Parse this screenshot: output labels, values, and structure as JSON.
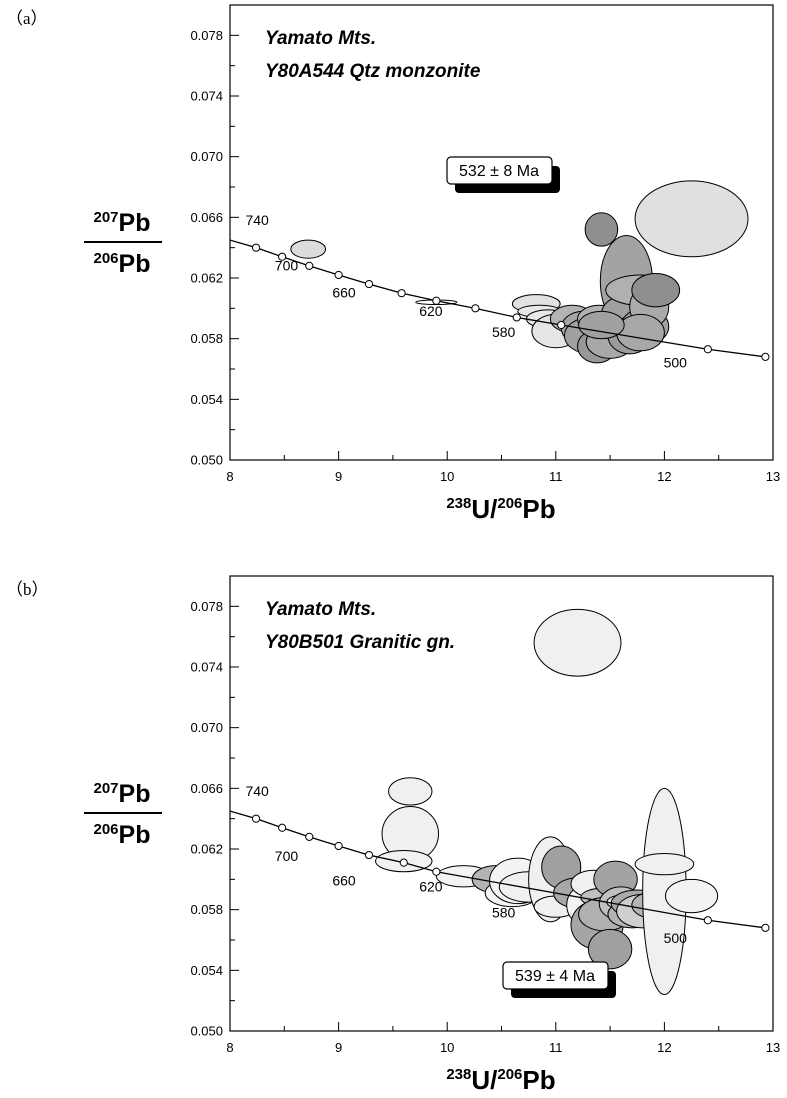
{
  "chart_data": [
    {
      "panel_label": "（a）",
      "type": "scatter",
      "title_lines": [
        "Yamato Mts.",
        "Y80A544  Qtz monzonite"
      ],
      "age_box": "532 ± 8 Ma",
      "xlim": [
        8,
        13
      ],
      "ylim": [
        0.05,
        0.08
      ],
      "x_ticks": [
        "8",
        "9",
        "10",
        "11",
        "12",
        "13"
      ],
      "y_ticks": [
        "0.050",
        "0.054",
        "0.058",
        "0.062",
        "0.066",
        "0.070",
        "0.074",
        "0.078"
      ],
      "y_label": {
        "num_sup": "207",
        "num": "Pb",
        "den_sup": "206",
        "den": "Pb"
      },
      "x_label": {
        "a_sup": "238",
        "a": "U/",
        "b_sup": "206",
        "b": "Pb"
      },
      "concordia": [
        [
          8.0,
          0.0645
        ],
        [
          8.24,
          0.064
        ],
        [
          8.48,
          0.0634
        ],
        [
          8.73,
          0.0628
        ],
        [
          9.0,
          0.0622
        ],
        [
          9.28,
          0.0616
        ],
        [
          9.58,
          0.061
        ],
        [
          9.9,
          0.0605
        ],
        [
          10.26,
          0.06
        ],
        [
          10.64,
          0.0594
        ],
        [
          11.05,
          0.0589
        ],
        [
          12.4,
          0.0573
        ],
        [
          12.93,
          0.0568
        ]
      ],
      "age_labels": [
        {
          "text": "740",
          "x": 8.25,
          "y": 0.0655
        },
        {
          "text": "700",
          "x": 8.52,
          "y": 0.0625
        },
        {
          "text": "660",
          "x": 9.05,
          "y": 0.0607
        },
        {
          "text": "620",
          "x": 9.85,
          "y": 0.0595
        },
        {
          "text": "580",
          "x": 10.52,
          "y": 0.0581
        },
        {
          "text": "500",
          "x": 12.1,
          "y": 0.0561
        }
      ],
      "ellipses": [
        {
          "x": 8.72,
          "y": 0.0639,
          "rx": 0.16,
          "ry": 0.0006,
          "fill": "#dcdcdc"
        },
        {
          "x": 9.9,
          "y": 0.0604,
          "rx": 0.19,
          "ry": 0.00015,
          "fill": "#ffffff"
        },
        {
          "x": 10.82,
          "y": 0.0603,
          "rx": 0.22,
          "ry": 0.0006,
          "fill": "#e2e2e2"
        },
        {
          "x": 10.85,
          "y": 0.0598,
          "rx": 0.2,
          "ry": 0.0004,
          "fill": "#e8e8e8"
        },
        {
          "x": 10.93,
          "y": 0.0593,
          "rx": 0.2,
          "ry": 0.0006,
          "fill": "#e8e8e8"
        },
        {
          "x": 11.0,
          "y": 0.0585,
          "rx": 0.22,
          "ry": 0.0011,
          "fill": "#e5e5e5"
        },
        {
          "x": 11.15,
          "y": 0.0593,
          "rx": 0.2,
          "ry": 0.0009,
          "fill": "#b4b4b4"
        },
        {
          "x": 11.25,
          "y": 0.0587,
          "rx": 0.2,
          "ry": 0.0011,
          "fill": "#a5a5a5"
        },
        {
          "x": 11.32,
          "y": 0.0582,
          "rx": 0.24,
          "ry": 0.0012,
          "fill": "#a0a0a0"
        },
        {
          "x": 11.38,
          "y": 0.0575,
          "rx": 0.18,
          "ry": 0.0011,
          "fill": "#989898"
        },
        {
          "x": 11.4,
          "y": 0.0593,
          "rx": 0.2,
          "ry": 0.0009,
          "fill": "#b2b2b2"
        },
        {
          "x": 11.45,
          "y": 0.0588,
          "rx": 0.2,
          "ry": 0.001,
          "fill": "#a3a3a3"
        },
        {
          "x": 11.5,
          "y": 0.0578,
          "rx": 0.22,
          "ry": 0.0011,
          "fill": "#a8a8a8"
        },
        {
          "x": 11.42,
          "y": 0.0652,
          "rx": 0.15,
          "ry": 0.0011,
          "fill": "#8f8f8f"
        },
        {
          "x": 11.65,
          "y": 0.0618,
          "rx": 0.24,
          "ry": 0.003,
          "fill": "#a3a3a3"
        },
        {
          "x": 11.62,
          "y": 0.0596,
          "rx": 0.2,
          "ry": 0.0012,
          "fill": "#a0a0a0"
        },
        {
          "x": 11.68,
          "y": 0.0582,
          "rx": 0.2,
          "ry": 0.0012,
          "fill": "#9b9b9b"
        },
        {
          "x": 11.78,
          "y": 0.0612,
          "rx": 0.32,
          "ry": 0.001,
          "fill": "#b0b0b0"
        },
        {
          "x": 11.82,
          "y": 0.0588,
          "rx": 0.22,
          "ry": 0.0012,
          "fill": "#a3a3a3"
        },
        {
          "x": 11.86,
          "y": 0.0601,
          "rx": 0.18,
          "ry": 0.0014,
          "fill": "#aaaaaa"
        },
        {
          "x": 11.78,
          "y": 0.0584,
          "rx": 0.22,
          "ry": 0.0012,
          "fill": "#a8a8a8"
        },
        {
          "x": 11.92,
          "y": 0.0612,
          "rx": 0.22,
          "ry": 0.0011,
          "fill": "#8f8f8f"
        },
        {
          "x": 12.25,
          "y": 0.0659,
          "rx": 0.52,
          "ry": 0.0025,
          "fill": "#e0e0e0"
        },
        {
          "x": 11.42,
          "y": 0.0589,
          "rx": 0.21,
          "ry": 0.0009,
          "fill": "#a0a0a0"
        }
      ]
    },
    {
      "panel_label": "（b）",
      "type": "scatter",
      "title_lines": [
        "Yamato Mts.",
        "Y80B501  Granitic gn."
      ],
      "age_box": "539 ± 4 Ma",
      "xlim": [
        8,
        13
      ],
      "ylim": [
        0.05,
        0.08
      ],
      "x_ticks": [
        "8",
        "9",
        "10",
        "11",
        "12",
        "13"
      ],
      "y_ticks": [
        "0.050",
        "0.054",
        "0.058",
        "0.062",
        "0.066",
        "0.070",
        "0.074",
        "0.078"
      ],
      "y_label": {
        "num_sup": "207",
        "num": "Pb",
        "den_sup": "206",
        "den": "Pb"
      },
      "x_label": {
        "a_sup": "238",
        "a": "U/",
        "b_sup": "206",
        "b": "Pb"
      },
      "concordia": [
        [
          8.0,
          0.0645
        ],
        [
          8.24,
          0.064
        ],
        [
          8.48,
          0.0634
        ],
        [
          8.73,
          0.0628
        ],
        [
          9.0,
          0.0622
        ],
        [
          9.28,
          0.0616
        ],
        [
          9.6,
          0.0611
        ],
        [
          9.9,
          0.0605
        ],
        [
          12.4,
          0.0573
        ],
        [
          12.93,
          0.0568
        ]
      ],
      "age_labels": [
        {
          "text": "740",
          "x": 8.25,
          "y": 0.0655
        },
        {
          "text": "700",
          "x": 8.52,
          "y": 0.0612
        },
        {
          "text": "660",
          "x": 9.05,
          "y": 0.0596
        },
        {
          "text": "620",
          "x": 9.85,
          "y": 0.0592
        },
        {
          "text": "580",
          "x": 10.52,
          "y": 0.0575
        },
        {
          "text": "500",
          "x": 12.1,
          "y": 0.0558
        }
      ],
      "ellipses": [
        {
          "x": 11.2,
          "y": 0.0756,
          "rx": 0.4,
          "ry": 0.0022,
          "fill": "#f0f0f0"
        },
        {
          "x": 9.66,
          "y": 0.0658,
          "rx": 0.2,
          "ry": 0.0009,
          "fill": "#f0f0f0"
        },
        {
          "x": 9.66,
          "y": 0.063,
          "rx": 0.26,
          "ry": 0.0018,
          "fill": "#f0f0f0"
        },
        {
          "x": 9.6,
          "y": 0.0612,
          "rx": 0.26,
          "ry": 0.0007,
          "fill": "#f2f2f2"
        },
        {
          "x": 10.15,
          "y": 0.0602,
          "rx": 0.25,
          "ry": 0.0007,
          "fill": "#f3f3f3"
        },
        {
          "x": 10.45,
          "y": 0.06,
          "rx": 0.22,
          "ry": 0.0009,
          "fill": "#b4b4b4"
        },
        {
          "x": 10.6,
          "y": 0.0591,
          "rx": 0.25,
          "ry": 0.0009,
          "fill": "#f3f3f3"
        },
        {
          "x": 10.65,
          "y": 0.0599,
          "rx": 0.26,
          "ry": 0.0015,
          "fill": "#f3f3f3"
        },
        {
          "x": 10.75,
          "y": 0.0595,
          "rx": 0.27,
          "ry": 0.001,
          "fill": "#f0f0f0"
        },
        {
          "x": 10.95,
          "y": 0.06,
          "rx": 0.2,
          "ry": 0.0028,
          "fill": "#f0f0f0"
        },
        {
          "x": 11.05,
          "y": 0.0608,
          "rx": 0.18,
          "ry": 0.0014,
          "fill": "#a0a0a0"
        },
        {
          "x": 11.0,
          "y": 0.0582,
          "rx": 0.2,
          "ry": 0.0007,
          "fill": "#f0f0f0"
        },
        {
          "x": 11.2,
          "y": 0.0591,
          "rx": 0.22,
          "ry": 0.001,
          "fill": "#a8a8a8"
        },
        {
          "x": 11.3,
          "y": 0.0583,
          "rx": 0.2,
          "ry": 0.0014,
          "fill": "#f3f3f3"
        },
        {
          "x": 11.35,
          "y": 0.0597,
          "rx": 0.21,
          "ry": 0.0009,
          "fill": "#f0f0f0"
        },
        {
          "x": 11.38,
          "y": 0.057,
          "rx": 0.24,
          "ry": 0.0016,
          "fill": "#a5a5a5"
        },
        {
          "x": 11.42,
          "y": 0.0588,
          "rx": 0.19,
          "ry": 0.0006,
          "fill": "#c0c0c0"
        },
        {
          "x": 11.45,
          "y": 0.0577,
          "rx": 0.24,
          "ry": 0.0011,
          "fill": "#b0b0b0"
        },
        {
          "x": 11.55,
          "y": 0.06,
          "rx": 0.2,
          "ry": 0.0012,
          "fill": "#a3a3a3"
        },
        {
          "x": 11.5,
          "y": 0.0554,
          "rx": 0.2,
          "ry": 0.0013,
          "fill": "#a0a0a0"
        },
        {
          "x": 11.6,
          "y": 0.0584,
          "rx": 0.2,
          "ry": 0.0011,
          "fill": "#c0c0c0"
        },
        {
          "x": 11.65,
          "y": 0.0585,
          "rx": 0.18,
          "ry": 0.0005,
          "fill": "#e0e0e0"
        },
        {
          "x": 11.7,
          "y": 0.0577,
          "rx": 0.22,
          "ry": 0.0009,
          "fill": "#b4b4b4"
        },
        {
          "x": 11.75,
          "y": 0.0584,
          "rx": 0.24,
          "ry": 0.0009,
          "fill": "#aaaaaa"
        },
        {
          "x": 11.8,
          "y": 0.0579,
          "rx": 0.24,
          "ry": 0.0011,
          "fill": "#cfcfcf"
        },
        {
          "x": 11.92,
          "y": 0.0583,
          "rx": 0.22,
          "ry": 0.0009,
          "fill": "#b4b4b4"
        },
        {
          "x": 12.0,
          "y": 0.0592,
          "rx": 0.2,
          "ry": 0.0068,
          "fill": "#f0f0f0"
        },
        {
          "x": 12.0,
          "y": 0.061,
          "rx": 0.27,
          "ry": 0.0007,
          "fill": "#f0f0f0"
        },
        {
          "x": 12.25,
          "y": 0.0589,
          "rx": 0.24,
          "ry": 0.0011,
          "fill": "#f3f3f3"
        }
      ]
    }
  ]
}
